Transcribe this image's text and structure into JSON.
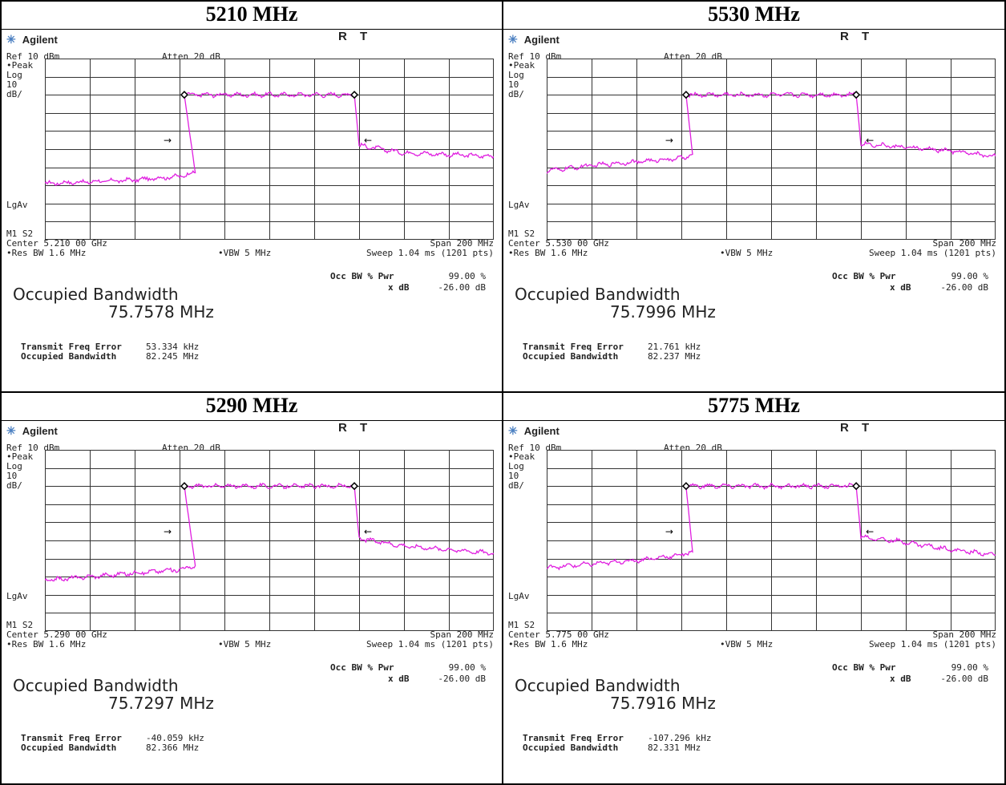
{
  "panels": [
    {
      "title": "5210 MHz",
      "brand": "Agilent",
      "status": "R T",
      "ref": "Ref 10 dBm",
      "atten": "Atten 20 dB",
      "peak": "•Peak",
      "log": "Log",
      "scale_num": "10",
      "scale_unit": "dB/",
      "lgav": "LgAv",
      "m1s2": "M1 S2",
      "center": "Center 5.210 00 GHz",
      "span": "Span 200 MHz",
      "res_bw": "•Res BW 1.6 MHz",
      "vbw": "•VBW 5 MHz",
      "sweep": "Sweep 1.04 ms (1201 pts)",
      "ob_title": "Occupied Bandwidth",
      "ob_value": "75.7578 MHz",
      "occ_pwr_label": "Occ BW % Pwr",
      "occ_pwr_value": "99.00 %",
      "xdb_label": "x dB",
      "xdb_value": "-26.00 dB",
      "tfe_label": "Transmit Freq Error",
      "tfe_value": "53.334 kHz",
      "obw_label": "Occupied Bandwidth",
      "obw_value": "82.245 MHz"
    },
    {
      "title": "5530 MHz",
      "brand": "Agilent",
      "status": "R T",
      "ref": "Ref 10 dBm",
      "atten": "Atten 20 dB",
      "peak": "•Peak",
      "log": "Log",
      "scale_num": "10",
      "scale_unit": "dB/",
      "lgav": "LgAv",
      "m1s2": "M1 S2",
      "center": "Center 5.530 00 GHz",
      "span": "Span 200 MHz",
      "res_bw": "•Res BW 1.6 MHz",
      "vbw": "•VBW 5 MHz",
      "sweep": "Sweep 1.04 ms (1201 pts)",
      "ob_title": "Occupied Bandwidth",
      "ob_value": "75.7996 MHz",
      "occ_pwr_label": "Occ BW % Pwr",
      "occ_pwr_value": "99.00 %",
      "xdb_label": "x dB",
      "xdb_value": "-26.00 dB",
      "tfe_label": "Transmit Freq Error",
      "tfe_value": "21.761 kHz",
      "obw_label": "Occupied Bandwidth",
      "obw_value": "82.237 MHz"
    },
    {
      "title": "5290 MHz",
      "brand": "Agilent",
      "status": "R T",
      "ref": "Ref 10 dBm",
      "atten": "Atten 20 dB",
      "peak": "•Peak",
      "log": "Log",
      "scale_num": "10",
      "scale_unit": "dB/",
      "lgav": "LgAv",
      "m1s2": "M1 S2",
      "center": "Center 5.290 00 GHz",
      "span": "Span 200 MHz",
      "res_bw": "•Res BW 1.6 MHz",
      "vbw": "•VBW 5 MHz",
      "sweep": "Sweep 1.04 ms (1201 pts)",
      "ob_title": "Occupied Bandwidth",
      "ob_value": "75.7297 MHz",
      "occ_pwr_label": "Occ BW % Pwr",
      "occ_pwr_value": "99.00 %",
      "xdb_label": "x dB",
      "xdb_value": "-26.00 dB",
      "tfe_label": "Transmit Freq Error",
      "tfe_value": "-40.059 kHz",
      "obw_label": "Occupied Bandwidth",
      "obw_value": "82.366 MHz"
    },
    {
      "title": "5775 MHz",
      "brand": "Agilent",
      "status": "R T",
      "ref": "Ref 10 dBm",
      "atten": "Atten 20 dB",
      "peak": "•Peak",
      "log": "Log",
      "scale_num": "10",
      "scale_unit": "dB/",
      "lgav": "LgAv",
      "m1s2": "M1 S2",
      "center": "Center 5.775 00 GHz",
      "span": "Span 200 MHz",
      "res_bw": "•Res BW 1.6 MHz",
      "vbw": "•VBW 5 MHz",
      "sweep": "Sweep 1.04 ms (1201 pts)",
      "ob_title": "Occupied Bandwidth",
      "ob_value": "75.7916 MHz",
      "occ_pwr_label": "Occ BW % Pwr",
      "occ_pwr_value": "99.00 %",
      "xdb_label": "x dB",
      "xdb_value": "-26.00 dB",
      "tfe_label": "Transmit Freq Error",
      "tfe_value": "-107.296 kHz",
      "obw_label": "Occupied Bandwidth",
      "obw_value": "82.331 MHz"
    }
  ],
  "colors": {
    "trace": "#e020e0",
    "grid": "#333333"
  },
  "icons": {
    "brand": "starburst-icon",
    "marker": "diamond-marker-icon",
    "arrow_right": "right-arrow-icon",
    "arrow_left": "left-arrow-icon"
  },
  "chart_data": [
    {
      "type": "line",
      "title": "5210 MHz",
      "x_center_mhz": 5210,
      "x_span_mhz": 200,
      "xlim": [
        5110,
        5310
      ],
      "ylim": [
        -90,
        10
      ],
      "grid": true,
      "grid_divisions": [
        10,
        10
      ],
      "series": [
        {
          "x": [
            5110,
            5130,
            5150,
            5170,
            5177,
            5172.1,
            5210,
            5247.9,
            5250,
            5270,
            5290,
            5310
          ],
          "y": [
            -59,
            -58,
            -57,
            -55,
            -53,
            -10,
            -10,
            -10,
            -38,
            -42,
            -43,
            -44
          ]
        }
      ],
      "occupied_bw_mhz": 75.7578
    },
    {
      "type": "line",
      "title": "5530 MHz",
      "x_center_mhz": 5530,
      "x_span_mhz": 200,
      "xlim": [
        5430,
        5630
      ],
      "ylim": [
        -90,
        10
      ],
      "grid": true,
      "grid_divisions": [
        10,
        10
      ],
      "series": [
        {
          "x": [
            5430,
            5450,
            5470,
            5490,
            5495,
            5492.1,
            5530,
            5567.9,
            5570,
            5590,
            5610,
            5630
          ],
          "y": [
            -52,
            -49,
            -47,
            -45,
            -43,
            -10,
            -10,
            -10,
            -37,
            -39,
            -41,
            -44
          ]
        }
      ],
      "occupied_bw_mhz": 75.7996
    },
    {
      "type": "line",
      "title": "5290 MHz",
      "x_center_mhz": 5290,
      "x_span_mhz": 200,
      "xlim": [
        5190,
        5390
      ],
      "ylim": [
        -90,
        10
      ],
      "grid": true,
      "grid_divisions": [
        10,
        10
      ],
      "series": [
        {
          "x": [
            5190,
            5210,
            5230,
            5250,
            5257,
            5252.1,
            5290,
            5327.9,
            5330,
            5350,
            5370,
            5390
          ],
          "y": [
            -62,
            -60,
            -58,
            -56,
            -54,
            -10,
            -10,
            -10,
            -39,
            -43,
            -45,
            -47
          ]
        }
      ],
      "occupied_bw_mhz": 75.7297
    },
    {
      "type": "line",
      "title": "5775 MHz",
      "x_center_mhz": 5775,
      "x_span_mhz": 200,
      "xlim": [
        5675,
        5875
      ],
      "ylim": [
        -90,
        10
      ],
      "grid": true,
      "grid_divisions": [
        10,
        10
      ],
      "series": [
        {
          "x": [
            5675,
            5695,
            5715,
            5735,
            5740,
            5737.1,
            5775,
            5812.9,
            5815,
            5835,
            5855,
            5875
          ],
          "y": [
            -55,
            -53,
            -51,
            -48,
            -46,
            -10,
            -10,
            -10,
            -38,
            -41,
            -45,
            -48
          ]
        }
      ],
      "occupied_bw_mhz": 75.7916
    }
  ]
}
